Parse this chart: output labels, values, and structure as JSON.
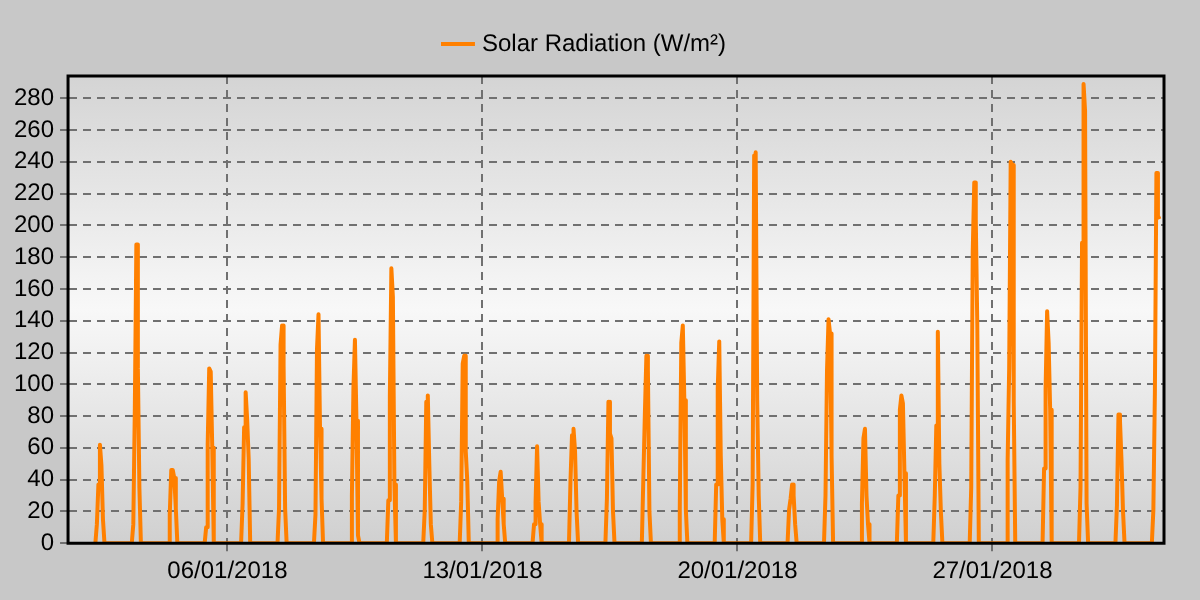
{
  "chart_data": {
    "type": "line",
    "legend": "top",
    "grid": true,
    "marker": "none",
    "line_style": "solid",
    "xlim": [
      "2018-01-01T15:00",
      "2018-01-31T17:00"
    ],
    "xticks": [
      {
        "value": "2018-01-06",
        "label": "06/01/2018"
      },
      {
        "value": "2018-01-13",
        "label": "13/01/2018"
      },
      {
        "value": "2018-01-20",
        "label": "20/01/2018"
      },
      {
        "value": "2018-01-27",
        "label": "27/01/2018"
      }
    ],
    "ylim": [
      0,
      294
    ],
    "yticks": [
      0,
      20,
      40,
      60,
      80,
      100,
      120,
      140,
      160,
      180,
      200,
      220,
      240,
      260,
      280
    ],
    "series": [
      {
        "name": "Solar Radiation (W/m²)",
        "color": "#ff8000",
        "x": [
          "2018-01-02T09:00",
          "2018-01-02T10:00",
          "2018-01-02T11:00",
          "2018-01-02T12:00",
          "2018-01-02T13:00",
          "2018-01-02T14:00",
          "2018-01-02T15:00",
          "2018-01-03T09:00",
          "2018-01-03T10:00",
          "2018-01-03T11:00",
          "2018-01-03T12:00",
          "2018-01-03T13:00",
          "2018-01-03T14:00",
          "2018-01-03T15:00",
          "2018-01-04T09:00",
          "2018-01-04T10:00",
          "2018-01-04T11:00",
          "2018-01-04T12:00",
          "2018-01-04T13:00",
          "2018-01-04T14:00",
          "2018-01-04T15:00",
          "2018-01-05T09:00",
          "2018-01-05T10:00",
          "2018-01-05T11:00",
          "2018-01-05T12:00",
          "2018-01-05T13:00",
          "2018-01-05T14:00",
          "2018-01-05T15:00",
          "2018-01-06T09:00",
          "2018-01-06T10:00",
          "2018-01-06T11:00",
          "2018-01-06T12:00",
          "2018-01-06T13:00",
          "2018-01-06T14:00",
          "2018-01-06T15:00",
          "2018-01-07T09:00",
          "2018-01-07T10:00",
          "2018-01-07T11:00",
          "2018-01-07T12:00",
          "2018-01-07T13:00",
          "2018-01-07T14:00",
          "2018-01-07T15:00",
          "2018-01-08T09:00",
          "2018-01-08T10:00",
          "2018-01-08T11:00",
          "2018-01-08T12:00",
          "2018-01-08T13:00",
          "2018-01-08T14:00",
          "2018-01-08T15:00",
          "2018-01-09T09:00",
          "2018-01-09T10:00",
          "2018-01-09T11:00",
          "2018-01-09T12:00",
          "2018-01-09T13:00",
          "2018-01-09T14:00",
          "2018-01-09T15:00",
          "2018-01-10T09:00",
          "2018-01-10T10:00",
          "2018-01-10T11:00",
          "2018-01-10T12:00",
          "2018-01-10T13:00",
          "2018-01-10T14:00",
          "2018-01-10T15:00",
          "2018-01-11T09:00",
          "2018-01-11T10:00",
          "2018-01-11T11:00",
          "2018-01-11T12:00",
          "2018-01-11T13:00",
          "2018-01-11T14:00",
          "2018-01-11T15:00",
          "2018-01-12T09:00",
          "2018-01-12T10:00",
          "2018-01-12T11:00",
          "2018-01-12T12:00",
          "2018-01-12T13:00",
          "2018-01-12T14:00",
          "2018-01-12T15:00",
          "2018-01-13T09:00",
          "2018-01-13T10:00",
          "2018-01-13T11:00",
          "2018-01-13T12:00",
          "2018-01-13T13:00",
          "2018-01-13T14:00",
          "2018-01-13T15:00",
          "2018-01-14T09:00",
          "2018-01-14T10:00",
          "2018-01-14T11:00",
          "2018-01-14T12:00",
          "2018-01-14T13:00",
          "2018-01-14T14:00",
          "2018-01-14T15:00",
          "2018-01-15T09:00",
          "2018-01-15T10:00",
          "2018-01-15T11:00",
          "2018-01-15T12:00",
          "2018-01-15T13:00",
          "2018-01-15T14:00",
          "2018-01-15T15:00",
          "2018-01-16T09:00",
          "2018-01-16T10:00",
          "2018-01-16T11:00",
          "2018-01-16T12:00",
          "2018-01-16T13:00",
          "2018-01-16T14:00",
          "2018-01-16T15:00",
          "2018-01-17T09:00",
          "2018-01-17T10:00",
          "2018-01-17T11:00",
          "2018-01-17T12:00",
          "2018-01-17T13:00",
          "2018-01-17T14:00",
          "2018-01-17T15:00",
          "2018-01-18T09:00",
          "2018-01-18T10:00",
          "2018-01-18T11:00",
          "2018-01-18T12:00",
          "2018-01-18T13:00",
          "2018-01-18T14:00",
          "2018-01-18T15:00",
          "2018-01-19T09:00",
          "2018-01-19T10:00",
          "2018-01-19T11:00",
          "2018-01-19T12:00",
          "2018-01-19T13:00",
          "2018-01-19T14:00",
          "2018-01-19T15:00",
          "2018-01-20T09:00",
          "2018-01-20T10:00",
          "2018-01-20T11:00",
          "2018-01-20T12:00",
          "2018-01-20T13:00",
          "2018-01-20T14:00",
          "2018-01-20T15:00",
          "2018-01-21T09:00",
          "2018-01-21T10:00",
          "2018-01-21T11:00",
          "2018-01-21T12:00",
          "2018-01-21T13:00",
          "2018-01-21T14:00",
          "2018-01-21T15:00",
          "2018-01-22T09:00",
          "2018-01-22T10:00",
          "2018-01-22T11:00",
          "2018-01-22T12:00",
          "2018-01-22T13:00",
          "2018-01-22T14:00",
          "2018-01-22T15:00",
          "2018-01-23T09:00",
          "2018-01-23T10:00",
          "2018-01-23T11:00",
          "2018-01-23T12:00",
          "2018-01-23T13:00",
          "2018-01-23T14:00",
          "2018-01-23T15:00",
          "2018-01-24T09:00",
          "2018-01-24T10:00",
          "2018-01-24T11:00",
          "2018-01-24T12:00",
          "2018-01-24T13:00",
          "2018-01-24T14:00",
          "2018-01-24T15:00",
          "2018-01-25T09:00",
          "2018-01-25T10:00",
          "2018-01-25T11:00",
          "2018-01-25T12:00",
          "2018-01-25T13:00",
          "2018-01-25T14:00",
          "2018-01-25T15:00",
          "2018-01-26T09:00",
          "2018-01-26T10:00",
          "2018-01-26T11:00",
          "2018-01-26T12:00",
          "2018-01-26T13:00",
          "2018-01-26T14:00",
          "2018-01-26T15:00",
          "2018-01-27T09:00",
          "2018-01-27T10:00",
          "2018-01-27T11:00",
          "2018-01-27T12:00",
          "2018-01-27T13:00",
          "2018-01-27T14:00",
          "2018-01-27T15:00",
          "2018-01-28T09:00",
          "2018-01-28T10:00",
          "2018-01-28T11:00",
          "2018-01-28T12:00",
          "2018-01-28T13:00",
          "2018-01-28T14:00",
          "2018-01-28T15:00",
          "2018-01-29T09:00",
          "2018-01-29T10:00",
          "2018-01-29T11:00",
          "2018-01-29T12:00",
          "2018-01-29T13:00",
          "2018-01-29T14:00",
          "2018-01-29T15:00",
          "2018-01-30T09:00",
          "2018-01-30T10:00",
          "2018-01-30T11:00",
          "2018-01-30T12:00",
          "2018-01-30T13:00",
          "2018-01-30T14:00",
          "2018-01-30T15:00",
          "2018-01-31T09:00",
          "2018-01-31T10:00",
          "2018-01-31T11:00",
          "2018-01-31T12:00",
          "2018-01-31T13:00",
          "2018-01-31T14:00"
        ],
        "values": [
          0,
          12,
          37,
          62,
          49,
          15,
          0,
          0,
          12,
          85,
          188,
          110,
          35,
          0,
          0,
          18,
          46,
          46,
          41,
          22,
          0,
          0,
          10,
          62,
          110,
          108,
          60,
          0,
          0,
          25,
          73,
          95,
          78,
          53,
          0,
          0,
          22,
          125,
          137,
          112,
          22,
          0,
          0,
          18,
          122,
          144,
          72,
          28,
          0,
          0,
          30,
          97,
          128,
          77,
          5,
          0,
          0,
          27,
          93,
          173,
          155,
          37,
          0,
          0,
          21,
          89,
          93,
          49,
          12,
          0,
          0,
          26,
          113,
          118,
          58,
          39,
          0,
          0,
          15,
          39,
          45,
          28,
          12,
          0,
          0,
          12,
          26,
          61,
          26,
          12,
          0,
          0,
          39,
          68,
          72,
          58,
          20,
          0,
          0,
          28,
          89,
          69,
          66,
          20,
          0,
          0,
          41,
          81,
          118,
          109,
          20,
          0,
          0,
          21,
          126,
          137,
          90,
          21,
          0,
          0,
          37,
          97,
          127,
          55,
          15,
          0,
          0,
          37,
          244,
          246,
          90,
          30,
          0,
          0,
          21,
          28,
          37,
          30,
          12,
          0,
          0,
          30,
          109,
          141,
          132,
          55,
          0,
          0,
          25,
          66,
          72,
          30,
          12,
          0,
          0,
          30,
          84,
          93,
          88,
          44,
          0,
          0,
          30,
          74,
          133,
          50,
          20,
          0,
          0,
          35,
          184,
          227,
          204,
          137,
          0,
          0,
          52,
          110,
          240,
          238,
          89,
          0,
          0,
          47,
          97,
          146,
          126,
          84,
          0,
          0,
          35,
          189,
          289,
          272,
          25,
          0,
          0,
          24,
          81,
          77,
          52,
          20,
          0,
          0,
          21,
          95,
          233,
          206,
          204
        ]
      }
    ]
  }
}
